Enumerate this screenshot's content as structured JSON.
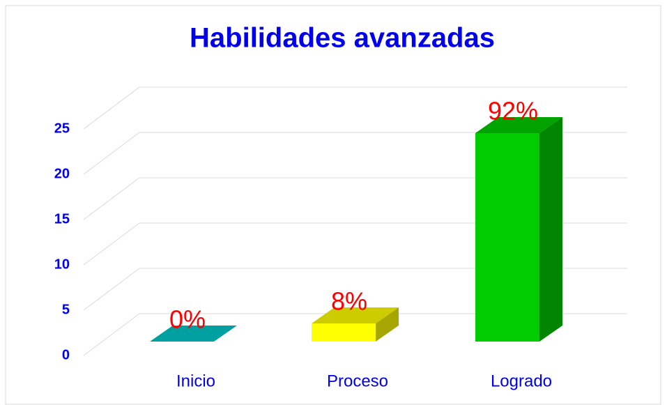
{
  "chart_data": {
    "type": "bar3d",
    "title": "Habilidades avanzadas",
    "categories": [
      "Inicio",
      "Proceso",
      "Logrado"
    ],
    "values": [
      0,
      2,
      23
    ],
    "value_labels": [
      "0%",
      "8%",
      "92%"
    ],
    "colors": [
      "#00c8c8",
      "#ffff00",
      "#00cc00"
    ],
    "ylim": [
      0,
      25
    ],
    "yticks": [
      0,
      5,
      10,
      15,
      20,
      25
    ],
    "grid": true
  }
}
